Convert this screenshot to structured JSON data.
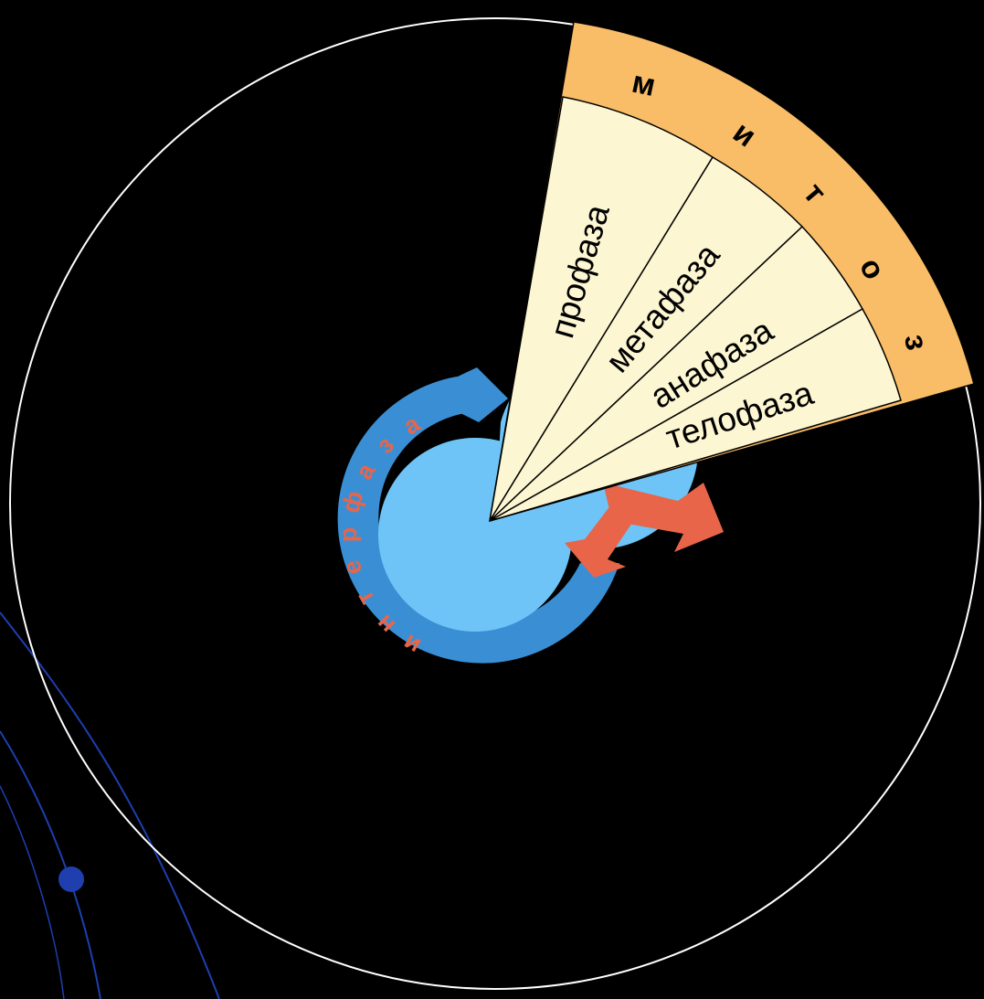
{
  "diagram": {
    "mitosis_letters": [
      "м",
      "и",
      "т",
      "о",
      "з"
    ],
    "phases": [
      {
        "label": "профаза"
      },
      {
        "label": "метафаза"
      },
      {
        "label": "анафаза"
      },
      {
        "label": "телофаза"
      }
    ],
    "interphase_letters": [
      "и",
      "н",
      "т",
      "е",
      "р",
      "ф",
      "а",
      "з",
      "а"
    ],
    "colors": {
      "background": "#000000",
      "mitosis_band": "#f9bc67",
      "phase_fill": "#fdf6d2",
      "ring_dark": "#3a8fd4",
      "ring_light": "#6ec4f6",
      "arrow": "#e8654a",
      "interphase_text": "#e8654a",
      "circle_outline": "#ffffff",
      "deco_line": "#1d3fb0"
    }
  }
}
